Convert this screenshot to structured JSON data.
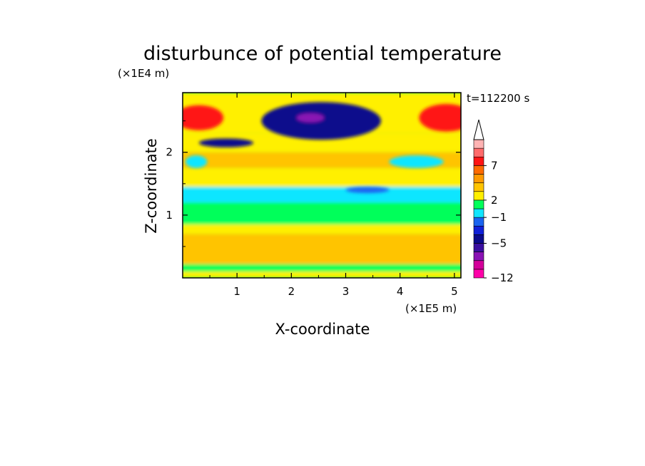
{
  "chart_data": {
    "type": "heatmap",
    "title": "disturbunce of potential temperature",
    "time_label": "t=112200 s",
    "xlabel": "X-coordinate",
    "ylabel": "Z-coordinate",
    "x_unit": "(×1E5 m)",
    "y_unit": "(×1E4 m)",
    "xlim": [
      0,
      5.12
    ],
    "ylim": [
      0,
      2.95
    ],
    "x_ticks": [
      "1",
      "2",
      "3",
      "4",
      "5"
    ],
    "y_ticks": [
      "1",
      "2"
    ],
    "colorbar": {
      "tick_labels": [
        "7",
        "2",
        "−1",
        "−5",
        "−12"
      ],
      "colors": [
        "#ff00a8",
        "#d4009a",
        "#8a12b4",
        "#3a0fa0",
        "#0b0a8c",
        "#1020d8",
        "#1a64f0",
        "#10e6ff",
        "#00ff5a",
        "#fff000",
        "#ffc400",
        "#ff9a00",
        "#ff6a00",
        "#ff1414",
        "#ff6b6b",
        "#ffb3b3"
      ],
      "extend_max": true
    },
    "bands": [
      {
        "z": [
          0.0,
          0.1
        ],
        "level": "yellow"
      },
      {
        "z": [
          0.1,
          0.22
        ],
        "level": "green"
      },
      {
        "z": [
          0.22,
          0.7
        ],
        "level": "orange"
      },
      {
        "z": [
          0.7,
          0.85
        ],
        "level": "yellow"
      },
      {
        "z": [
          0.85,
          1.2
        ],
        "level": "green"
      },
      {
        "z": [
          1.2,
          1.45
        ],
        "level": "cyan"
      },
      {
        "z": [
          1.45,
          1.75
        ],
        "level": "yellow"
      },
      {
        "z": [
          1.75,
          2.0
        ],
        "level": "orange"
      },
      {
        "z": [
          2.0,
          2.3
        ],
        "level": "yellow"
      },
      {
        "z": [
          2.3,
          2.95
        ],
        "level": "yellow"
      }
    ],
    "features": [
      {
        "x": 0.3,
        "z": 2.55,
        "rx": 0.45,
        "rz": 0.2,
        "level": "red"
      },
      {
        "x": 4.85,
        "z": 2.55,
        "rx": 0.5,
        "rz": 0.22,
        "level": "red"
      },
      {
        "x": 2.55,
        "z": 2.5,
        "rx": 1.1,
        "rz": 0.3,
        "level": "darkblue"
      },
      {
        "x": 2.35,
        "z": 2.55,
        "rx": 0.25,
        "rz": 0.07,
        "level": "purple"
      },
      {
        "x": 0.8,
        "z": 2.15,
        "rx": 0.5,
        "rz": 0.07,
        "level": "darkblue"
      },
      {
        "x": 3.4,
        "z": 1.4,
        "rx": 0.4,
        "rz": 0.05,
        "level": "blue"
      },
      {
        "x": 4.3,
        "z": 1.85,
        "rx": 0.5,
        "rz": 0.1,
        "level": "cyan"
      },
      {
        "x": 0.25,
        "z": 1.85,
        "rx": 0.2,
        "rz": 0.1,
        "level": "cyan"
      }
    ]
  }
}
